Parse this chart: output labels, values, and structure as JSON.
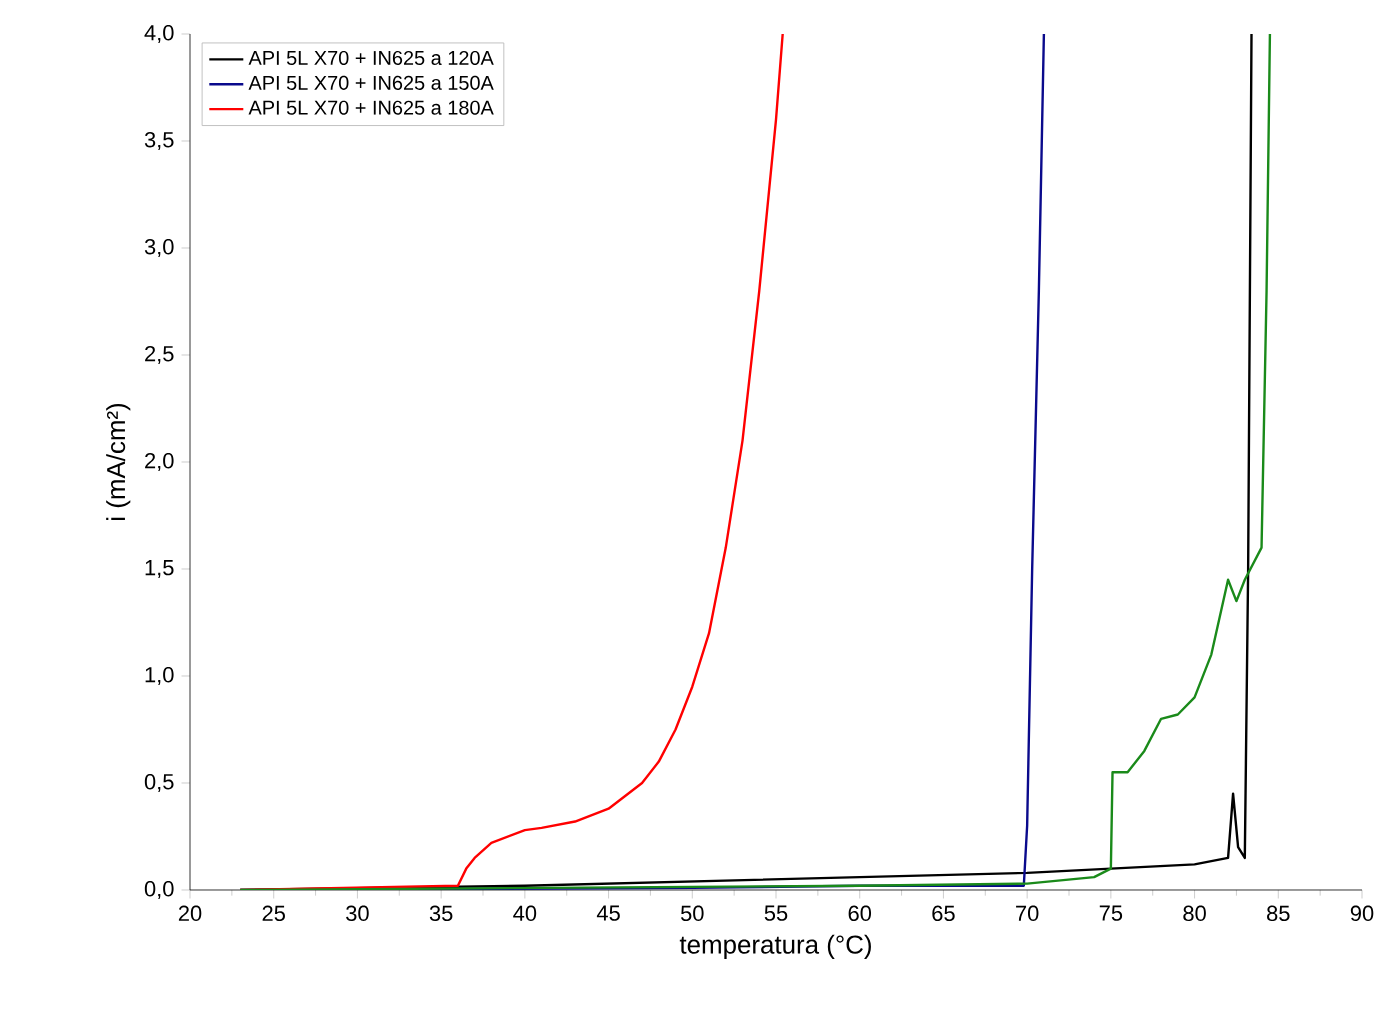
{
  "chart_data": {
    "type": "line",
    "xlabel": "temperatura (°C)",
    "ylabel": "i (mA/cm²)",
    "xlim": [
      20,
      90
    ],
    "ylim": [
      0,
      4
    ],
    "xticks": [
      20,
      25,
      30,
      35,
      40,
      45,
      50,
      55,
      60,
      65,
      70,
      75,
      80,
      85,
      90
    ],
    "yticks": [
      {
        "value": 0,
        "label": "0,0"
      },
      {
        "value": 0.5,
        "label": "0,5"
      },
      {
        "value": 1,
        "label": "1,0"
      },
      {
        "value": 1.5,
        "label": "1,5"
      },
      {
        "value": 2,
        "label": "2,0"
      },
      {
        "value": 2.5,
        "label": "2,5"
      },
      {
        "value": 3,
        "label": "3,0"
      },
      {
        "value": 3.5,
        "label": "3,5"
      },
      {
        "value": 4,
        "label": "4,0"
      }
    ],
    "legend": "top left",
    "grid": false,
    "series": [
      {
        "name": "API 5L X70 + IN625 a 120A",
        "color": "#000000",
        "x": [
          23,
          40,
          50,
          60,
          70,
          75,
          80,
          82,
          82.3,
          82.6,
          83,
          83.2,
          83.4
        ],
        "values": [
          0,
          0.02,
          0.04,
          0.06,
          0.08,
          0.1,
          0.12,
          0.15,
          0.45,
          0.2,
          0.15,
          1.5,
          4.0
        ]
      },
      {
        "name": "API 5L X70 + IN625 a 150A",
        "color": "#0a0a8c",
        "x": [
          23,
          50,
          60,
          69.8,
          70,
          70.3,
          70.7,
          71
        ],
        "values": [
          0,
          0.01,
          0.02,
          0.02,
          0.3,
          1.5,
          2.8,
          4.0
        ]
      },
      {
        "name": "API 5L X70 + IN625 a 180A",
        "color": "#ff0000",
        "x": [
          23,
          36,
          36.5,
          37,
          38,
          40,
          41,
          43,
          45,
          47,
          48,
          49,
          50,
          51,
          52,
          53,
          54,
          55,
          55.4
        ],
        "values": [
          0,
          0.02,
          0.1,
          0.15,
          0.22,
          0.28,
          0.29,
          0.32,
          0.38,
          0.5,
          0.6,
          0.75,
          0.95,
          1.2,
          1.6,
          2.1,
          2.8,
          3.6,
          4.0
        ]
      },
      {
        "color": "#1a8a1a",
        "x": [
          23,
          60,
          70,
          74,
          75,
          75.1,
          76,
          77,
          78,
          79,
          80,
          81,
          82,
          82.5,
          83,
          84,
          84.3,
          84.5
        ],
        "values": [
          0,
          0.02,
          0.03,
          0.06,
          0.1,
          0.55,
          0.55,
          0.65,
          0.8,
          0.82,
          0.9,
          1.1,
          1.45,
          1.35,
          1.45,
          1.6,
          2.8,
          4.0
        ]
      }
    ]
  }
}
